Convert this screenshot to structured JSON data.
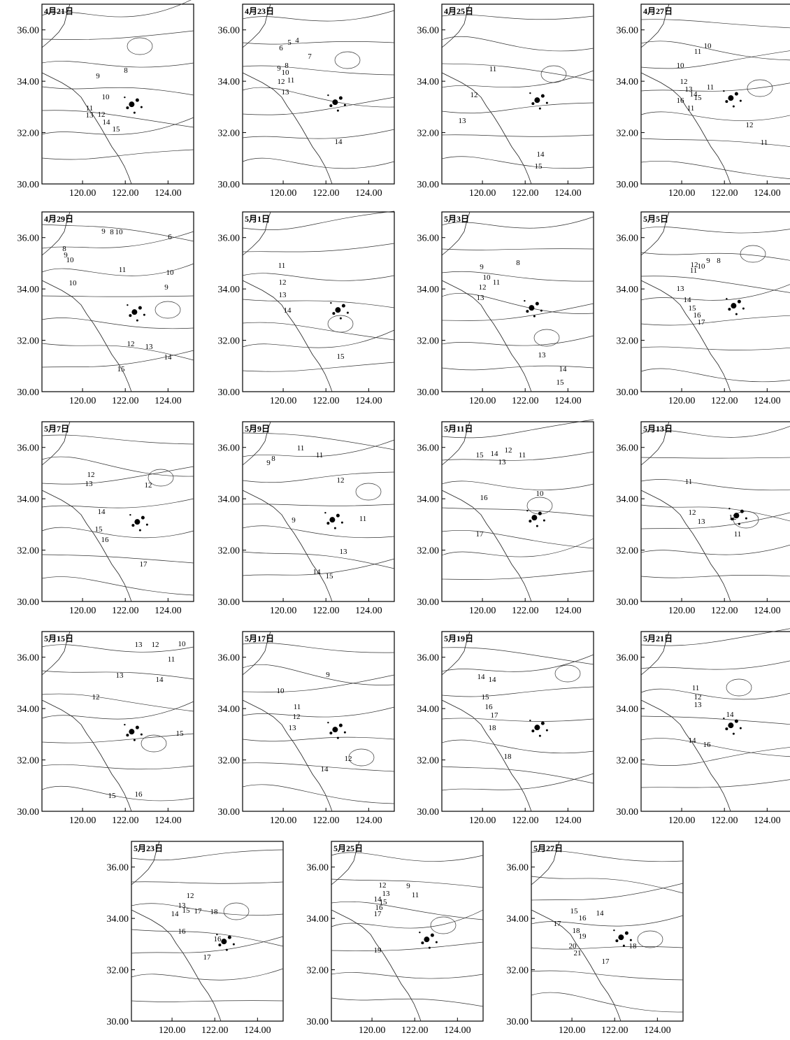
{
  "axes": {
    "xticks": [
      {
        "value": 120,
        "label": "120.00"
      },
      {
        "value": 122,
        "label": "122.00"
      },
      {
        "value": 124,
        "label": "124.00"
      }
    ],
    "yticks": [
      {
        "value": 30,
        "label": "30.00"
      },
      {
        "value": 32,
        "label": "32.00"
      },
      {
        "value": 34,
        "label": "34.00"
      },
      {
        "value": 36,
        "label": "36.00"
      }
    ],
    "xlim": [
      118.1,
      125.2
    ],
    "ylim": [
      30,
      37
    ]
  },
  "panels": [
    {
      "title": "4月21日",
      "contour_labels": [
        8,
        9,
        10,
        11,
        13,
        12,
        14,
        15
      ]
    },
    {
      "title": "4月23日",
      "contour_labels": [
        4,
        5,
        6,
        7,
        8,
        9,
        10,
        11,
        12,
        13,
        14
      ]
    },
    {
      "title": "4月25日",
      "contour_labels": [
        11,
        12,
        13,
        14,
        15
      ]
    },
    {
      "title": "4月27日",
      "contour_labels": [
        10,
        11,
        10,
        11,
        12,
        13,
        14,
        15,
        16,
        11,
        12,
        11
      ]
    },
    {
      "title": "4月29日",
      "contour_labels": [
        9,
        8,
        10,
        6,
        8,
        9,
        10,
        11,
        10,
        10,
        9,
        12,
        13,
        14,
        15
      ]
    },
    {
      "title": "5月1日",
      "contour_labels": [
        11,
        12,
        13,
        14,
        15
      ]
    },
    {
      "title": "5月3日",
      "contour_labels": [
        9,
        8,
        10,
        11,
        12,
        13,
        13,
        14,
        15
      ]
    },
    {
      "title": "5月5日",
      "contour_labels": [
        12,
        11,
        10,
        9,
        8,
        13,
        14,
        15,
        16,
        17
      ]
    },
    {
      "title": "5月7日",
      "contour_labels": [
        12,
        13,
        12,
        14,
        15,
        16,
        17
      ]
    },
    {
      "title": "5月9日",
      "contour_labels": [
        9,
        8,
        11,
        11,
        12,
        11,
        9,
        13,
        14,
        15
      ]
    },
    {
      "title": "5月11日",
      "contour_labels": [
        15,
        14,
        12,
        11,
        13,
        16,
        10,
        17
      ]
    },
    {
      "title": "5月13日",
      "contour_labels": [
        11,
        12,
        12,
        11,
        13
      ]
    },
    {
      "title": "5月15日",
      "contour_labels": [
        13,
        12,
        10,
        11,
        13,
        14,
        12,
        15,
        15,
        16
      ]
    },
    {
      "title": "5月17日",
      "contour_labels": [
        9,
        10,
        11,
        12,
        13,
        12,
        14
      ]
    },
    {
      "title": "5月19日",
      "contour_labels": [
        14,
        14,
        15,
        16,
        17,
        18,
        18
      ]
    },
    {
      "title": "5月21日",
      "contour_labels": [
        11,
        12,
        13,
        14,
        14,
        16
      ]
    },
    {
      "title": "5月23日",
      "contour_labels": [
        13,
        12,
        14,
        15,
        17,
        18,
        16,
        16,
        17
      ]
    },
    {
      "title": "5月25日",
      "contour_labels": [
        12,
        13,
        14,
        15,
        16,
        17,
        9,
        11,
        19
      ]
    },
    {
      "title": "5月27日",
      "contour_labels": [
        15,
        14,
        16,
        17,
        18,
        19,
        20,
        21,
        18,
        17
      ]
    }
  ]
}
